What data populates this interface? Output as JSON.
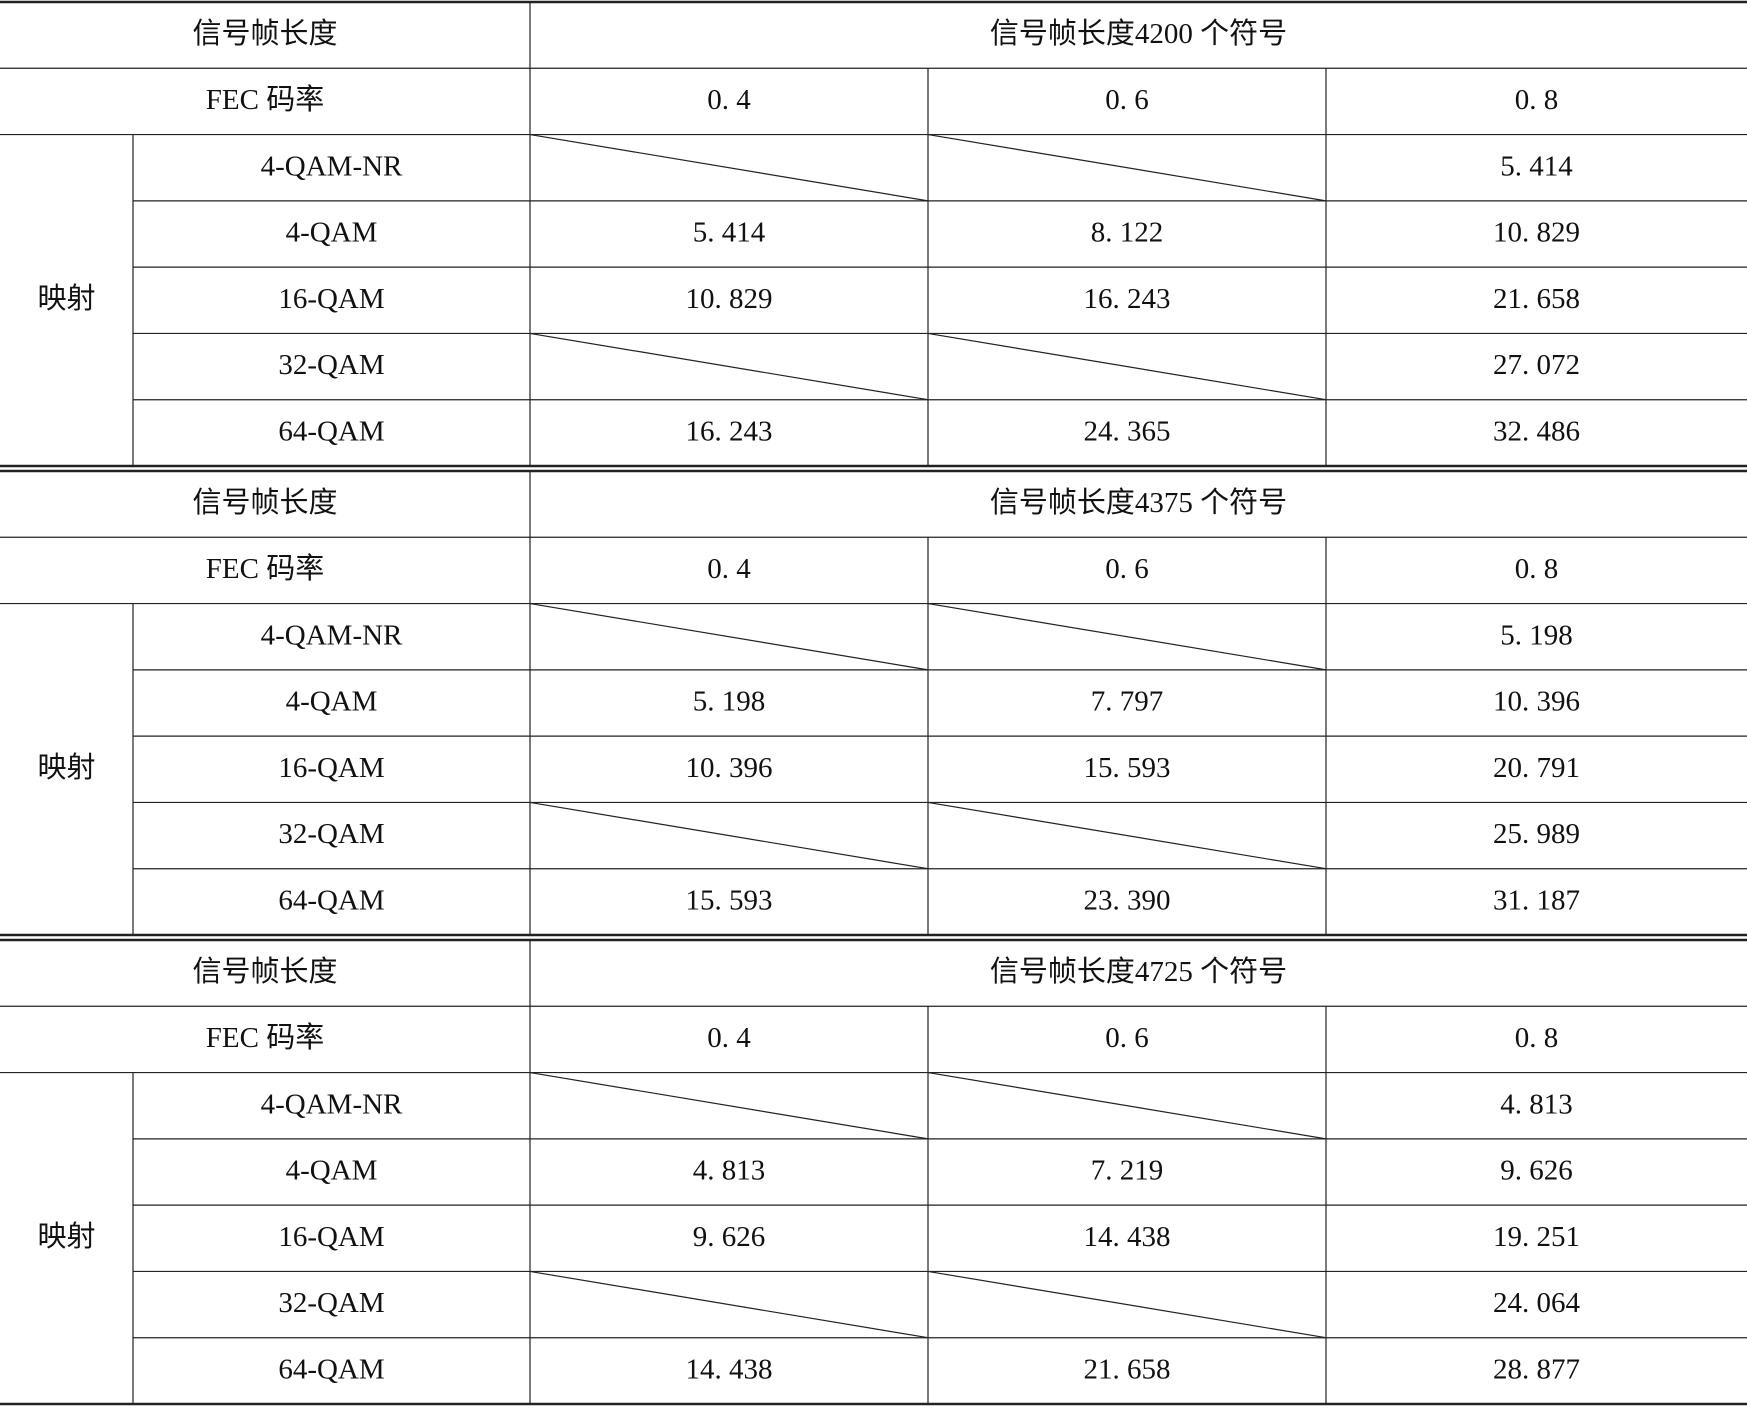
{
  "tables": [
    {
      "header_label": "信号帧长度",
      "header_value": "信号帧长度4200 个符号",
      "fec_label": "FEC 码率",
      "rates": [
        "0. 4",
        "0. 6",
        "0. 8"
      ],
      "group_label": "映射",
      "rows": [
        {
          "label": "4-QAM-NR",
          "cells": [
            null,
            null,
            "5. 414"
          ]
        },
        {
          "label": "4-QAM",
          "cells": [
            "5. 414",
            "8. 122",
            "10. 829"
          ]
        },
        {
          "label": "16-QAM",
          "cells": [
            "10. 829",
            "16. 243",
            "21. 658"
          ]
        },
        {
          "label": "32-QAM",
          "cells": [
            null,
            null,
            "27. 072"
          ]
        },
        {
          "label": "64-QAM",
          "cells": [
            "16. 243",
            "24. 365",
            "32. 486"
          ]
        }
      ]
    },
    {
      "header_label": "信号帧长度",
      "header_value": "信号帧长度4375 个符号",
      "fec_label": "FEC 码率",
      "rates": [
        "0. 4",
        "0. 6",
        "0. 8"
      ],
      "group_label": "映射",
      "rows": [
        {
          "label": "4-QAM-NR",
          "cells": [
            null,
            null,
            "5. 198"
          ]
        },
        {
          "label": "4-QAM",
          "cells": [
            "5. 198",
            "7. 797",
            "10. 396"
          ]
        },
        {
          "label": "16-QAM",
          "cells": [
            "10. 396",
            "15. 593",
            "20. 791"
          ]
        },
        {
          "label": "32-QAM",
          "cells": [
            null,
            null,
            "25. 989"
          ]
        },
        {
          "label": "64-QAM",
          "cells": [
            "15. 593",
            "23. 390",
            "31. 187"
          ]
        }
      ]
    },
    {
      "header_label": "信号帧长度",
      "header_value": "信号帧长度4725 个符号",
      "fec_label": "FEC 码率",
      "rates": [
        "0. 4",
        "0. 6",
        "0. 8"
      ],
      "group_label": "映射",
      "rows": [
        {
          "label": "4-QAM-NR",
          "cells": [
            null,
            null,
            "4. 813"
          ]
        },
        {
          "label": "4-QAM",
          "cells": [
            "4. 813",
            "7. 219",
            "9. 626"
          ]
        },
        {
          "label": "16-QAM",
          "cells": [
            "9. 626",
            "14. 438",
            "19. 251"
          ]
        },
        {
          "label": "32-QAM",
          "cells": [
            null,
            null,
            "24. 064"
          ]
        },
        {
          "label": "64-QAM",
          "cells": [
            "14. 438",
            "21. 658",
            "28. 877"
          ]
        }
      ]
    }
  ]
}
